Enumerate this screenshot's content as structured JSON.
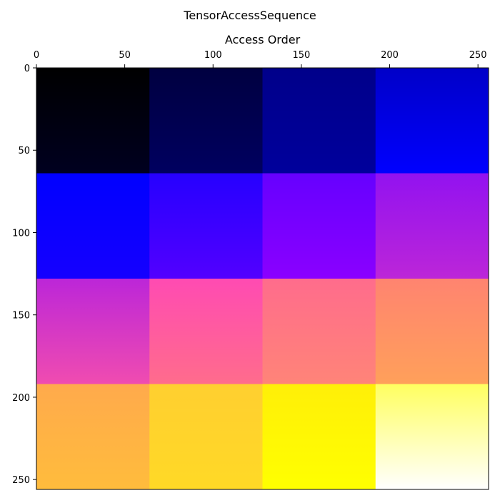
{
  "chart_data": {
    "type": "heatmap",
    "title": "TensorAccessSequence",
    "xlabel": "Access Order",
    "ylabel": "",
    "x_axis_position": "top",
    "y_axis_inverted": true,
    "xlim": [
      0,
      256
    ],
    "ylim": [
      0,
      256
    ],
    "x_ticks": [
      0,
      50,
      100,
      150,
      200,
      250
    ],
    "y_ticks": [
      0,
      50,
      100,
      150,
      200,
      250
    ],
    "colormap": "gnuplot2",
    "grid": false,
    "block_size": [
      64,
      64
    ],
    "rows": 4,
    "cols": 4,
    "block_colors": [
      [
        [
          "#000000",
          "#000020"
        ],
        [
          "#000040",
          "#000060"
        ],
        [
          "#00008a",
          "#00009c"
        ],
        [
          "#0000c8",
          "#0000ff"
        ]
      ],
      [
        [
          "#0000ff",
          "#1500ff"
        ],
        [
          "#2600ff",
          "#5200ff"
        ],
        [
          "#6600ff",
          "#8a00ff"
        ],
        [
          "#9212f0",
          "#bc26d8"
        ]
      ],
      [
        [
          "#bc26d8",
          "#f04cb0"
        ],
        [
          "#ff4bb2",
          "#ff6c8c"
        ],
        [
          "#ff6c8c",
          "#ff8478"
        ],
        [
          "#ff8470",
          "#ffa05a"
        ]
      ],
      [
        [
          "#ffaa4c",
          "#ffbc3c"
        ],
        [
          "#ffcf30",
          "#ffd926"
        ],
        [
          "#ffef08",
          "#ffff00"
        ],
        [
          "#ffff60",
          "#ffffff"
        ]
      ]
    ]
  }
}
